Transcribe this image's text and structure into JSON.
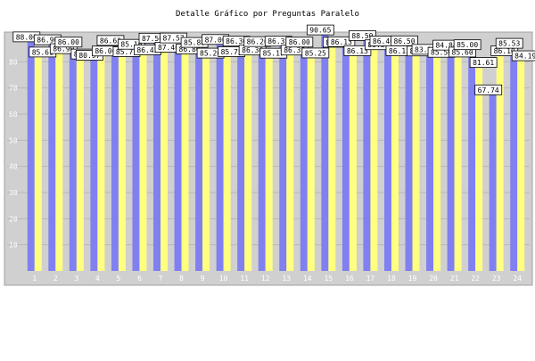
{
  "chart_data": {
    "type": "bar",
    "title": "Detalle Gráfico por Preguntas Paralelo",
    "xlabel": "",
    "ylabel": "",
    "ylim": [
      0,
      90
    ],
    "yticks": [
      10,
      20,
      30,
      40,
      50,
      60,
      70,
      80
    ],
    "grid": true,
    "legend": "none",
    "categories": [
      "1",
      "2",
      "3",
      "4",
      "5",
      "6",
      "7",
      "8",
      "9",
      "10",
      "11",
      "12",
      "13",
      "14",
      "15",
      "16",
      "17",
      "18",
      "19",
      "20",
      "21",
      "22",
      "23",
      "24"
    ],
    "series": [
      {
        "color": "#8080f0",
        "values": [
          88.0,
          86.9,
          86.0,
          80.97,
          86.63,
          85.16,
          87.5,
          87.57,
          85.88,
          87.0,
          86.36,
          86.2,
          86.35,
          86.0,
          90.65,
          86.13,
          88.5,
          86.4,
          86.5,
          83.23,
          84.84,
          85.0,
          67.74,
          85.53
        ]
      },
      {
        "color": "#ffff80",
        "values": [
          85.61,
          86.9,
          84.84,
          86.0,
          85.77,
          86.45,
          87.46,
          86.8,
          85.2,
          85.75,
          86.36,
          85.17,
          86.35,
          85.25,
          89.35,
          86.13,
          88.39,
          86.13,
          86.01,
          85.5,
          85.6,
          81.61,
          86.1,
          84.19
        ]
      }
    ]
  },
  "colors": {
    "plot_background": "#d0d0d0",
    "grid": "#b8b8b8",
    "text": "#000000",
    "tick_label": "#ffffff"
  }
}
